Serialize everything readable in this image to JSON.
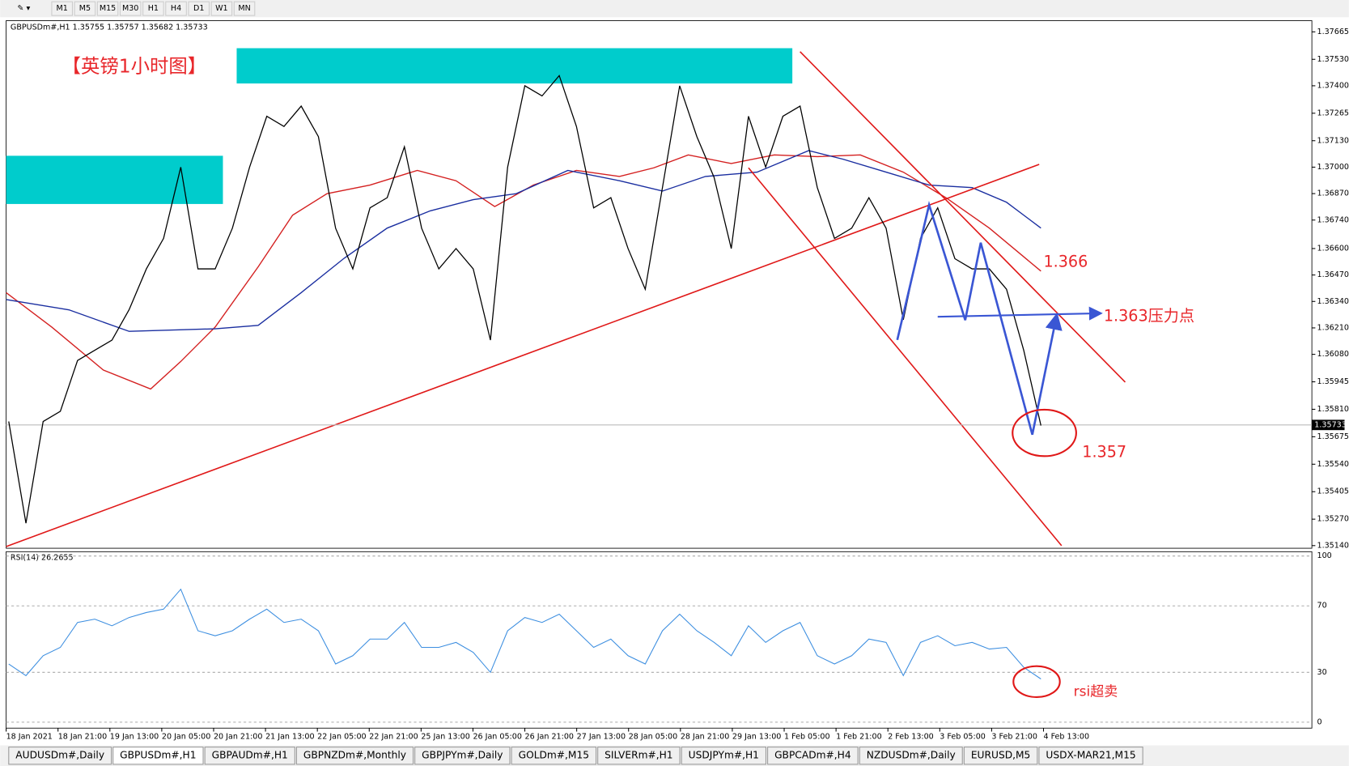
{
  "toolbar": {
    "timeframes": [
      "M1",
      "M5",
      "M15",
      "M30",
      "H1",
      "H4",
      "D1",
      "W1",
      "MN"
    ]
  },
  "chart": {
    "header": "GBPUSDm#,H1  1.35755 1.35757 1.35682 1.35733",
    "annotations": {
      "title": "【英镑1小时图】",
      "level_1366": "1.366",
      "level_1363": "1.363压力点",
      "level_1357": "1.357",
      "rsi_note": "rsi超卖"
    },
    "ylim": [
      1.35127,
      1.3772
    ],
    "yticks": [
      1.37665,
      {
        "value": 1.3753,
        "label": "1.37530"
      },
      {
        "value": 1.374,
        "label": "1.37400"
      },
      1.37265,
      {
        "value": 1.3713,
        "label": "1.37130"
      },
      {
        "value": 1.37,
        "label": "1.37000"
      },
      {
        "value": 1.3687,
        "label": "1.36870"
      },
      {
        "value": 1.3674,
        "label": "1.36740"
      },
      {
        "value": 1.366,
        "label": "1.36600"
      },
      {
        "value": 1.3647,
        "label": "1.36470"
      },
      {
        "value": 1.3634,
        "label": "1.36340"
      },
      {
        "value": 1.3621,
        "label": "1.36210"
      },
      {
        "value": 1.3608,
        "label": "1.36080"
      },
      1.35945,
      {
        "value": 1.3581,
        "label": "1.35810"
      },
      1.35675,
      {
        "value": 1.3554,
        "label": "1.35540"
      },
      1.35405,
      {
        "value": 1.3527,
        "label": "1.35270"
      },
      {
        "value": 1.3514,
        "label": "1.35140"
      }
    ],
    "current_price": 1.35733,
    "price_path": [
      1.3575,
      1.3525,
      1.3575,
      1.358,
      1.3605,
      1.361,
      1.3615,
      1.363,
      1.365,
      1.3665,
      1.37,
      1.365,
      1.365,
      1.367,
      1.37,
      1.3725,
      1.372,
      1.373,
      1.3715,
      1.367,
      1.365,
      1.368,
      1.3685,
      1.371,
      1.367,
      1.365,
      1.366,
      1.365,
      1.3615,
      1.37,
      1.374,
      1.3735,
      1.3745,
      1.372,
      1.368,
      1.3685,
      1.366,
      1.364,
      1.369,
      1.374,
      1.3715,
      1.3695,
      1.366,
      1.3725,
      1.37,
      1.3725,
      1.373,
      1.369,
      1.3665,
      1.367,
      1.3685,
      1.367,
      1.3625,
      1.3665,
      1.368,
      1.3655,
      1.365,
      1.365,
      1.364,
      1.361,
      1.3573
    ],
    "time_labels": [
      "18 Jan 2021",
      "18 Jan 21:00",
      "19 Jan 13:00",
      "20 Jan 05:00",
      "20 Jan 21:00",
      "21 Jan 13:00",
      "22 Jan 05:00",
      "22 Jan 21:00",
      "25 Jan 13:00",
      "26 Jan 05:00",
      "26 Jan 21:00",
      "27 Jan 13:00",
      "28 Jan 05:00",
      "28 Jan 21:00",
      "29 Jan 13:00",
      "1 Feb 05:00",
      "1 Feb 21:00",
      "2 Feb 13:00",
      "3 Feb 05:00",
      "3 Feb 21:00",
      "4 Feb 13:00"
    ],
    "rsi": {
      "header": "RSI(14) 26.2655",
      "ylim": [
        -3.6,
        102.6
      ],
      "yticks": [
        100,
        70,
        30,
        0
      ],
      "values": [
        35,
        28,
        40,
        45,
        60,
        62,
        58,
        63,
        66,
        68,
        80,
        55,
        52,
        55,
        62,
        68,
        60,
        62,
        55,
        35,
        40,
        50,
        50,
        60,
        45,
        45,
        48,
        42,
        30,
        55,
        63,
        60,
        65,
        55,
        45,
        50,
        40,
        35,
        55,
        65,
        55,
        48,
        40,
        58,
        48,
        55,
        60,
        40,
        35,
        40,
        50,
        48,
        28,
        48,
        52,
        46,
        48,
        44,
        45,
        33,
        26
      ]
    }
  },
  "tabs": [
    "AUDUSDm#,Daily",
    "GBPUSDm#,H1",
    "GBPAUDm#,H1",
    "GBPNZDm#,Monthly",
    "GBPJPYm#,Daily",
    "GOLDm#,M15",
    "SILVERm#,H1",
    "USDJPYm#,H1",
    "GBPCADm#,H4",
    "NZDUSDm#,Daily",
    "EURUSD,M5",
    "USDX-MAR21,M15"
  ]
}
